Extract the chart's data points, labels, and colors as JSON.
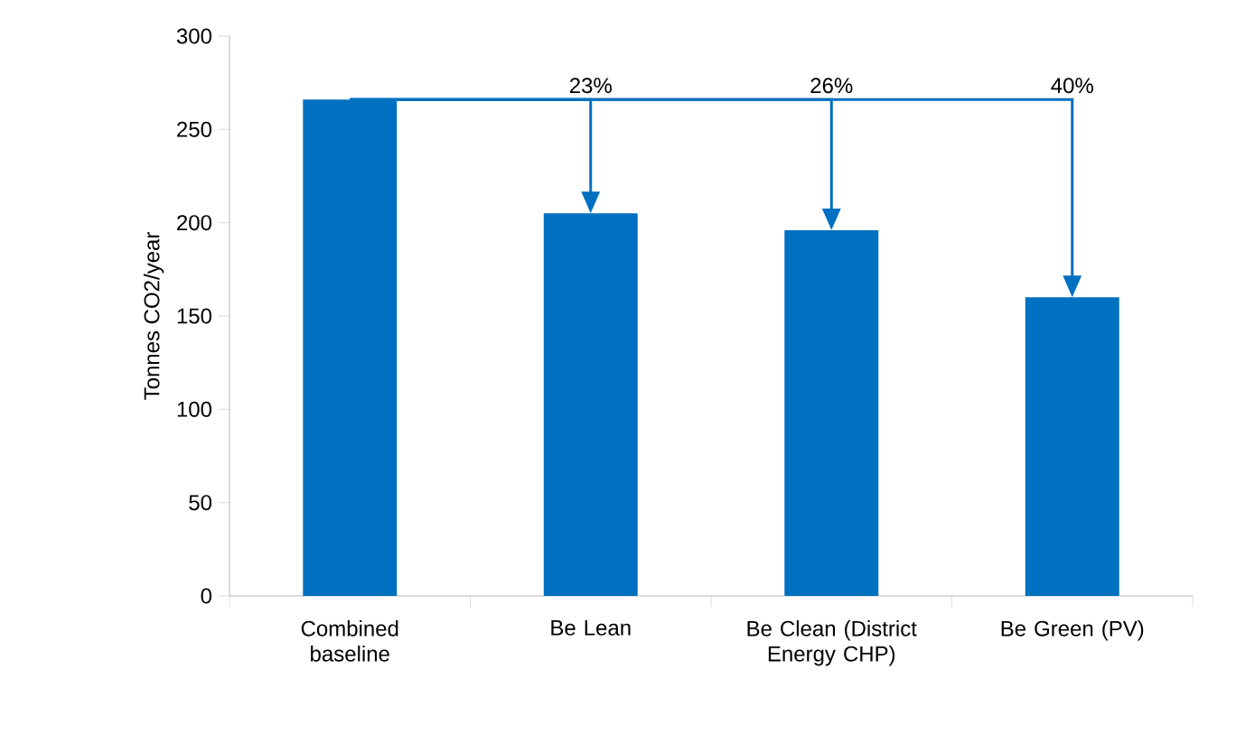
{
  "chart_data": {
    "type": "bar",
    "ylabel": "Tonnes CO2/year",
    "categories": [
      "Combined baseline",
      "Be Lean",
      "Be Clean (District Energy CHP)",
      "Be Green (PV)"
    ],
    "values": [
      266,
      205,
      196,
      160
    ],
    "color": "#0070c0",
    "ylim": [
      0,
      300
    ],
    "yticks": [
      0,
      50,
      100,
      150,
      200,
      250,
      300
    ],
    "grid": false,
    "annotations": [
      "23%",
      "26%",
      "40%"
    ]
  }
}
